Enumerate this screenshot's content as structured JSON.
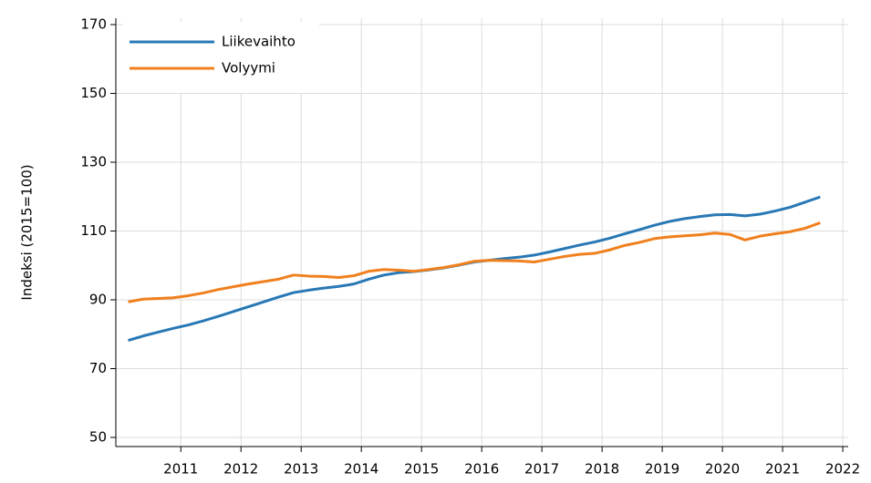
{
  "chart_data": {
    "type": "line",
    "y_label": "Indeksi (2015=100)",
    "x": [
      2010.125,
      2010.375,
      2010.625,
      2010.875,
      2011.125,
      2011.375,
      2011.625,
      2011.875,
      2012.125,
      2012.375,
      2012.625,
      2012.875,
      2013.125,
      2013.375,
      2013.625,
      2013.875,
      2014.125,
      2014.375,
      2014.625,
      2014.875,
      2015.125,
      2015.375,
      2015.625,
      2015.875,
      2016.125,
      2016.375,
      2016.625,
      2016.875,
      2017.125,
      2017.375,
      2017.625,
      2017.875,
      2018.125,
      2018.375,
      2018.625,
      2018.875,
      2019.125,
      2019.375,
      2019.625,
      2019.875,
      2020.125,
      2020.375,
      2020.625,
      2020.875,
      2021.125,
      2021.375,
      2021.625
    ],
    "series": [
      {
        "name": "Liikevaihto",
        "color": "#2878b5",
        "values": [
          78.2,
          79.5,
          80.6,
          81.7,
          82.7,
          83.9,
          85.2,
          86.6,
          88.0,
          89.4,
          90.8,
          92.1,
          92.8,
          93.4,
          93.9,
          94.6,
          96.0,
          97.2,
          97.9,
          98.2,
          98.7,
          99.3,
          100.1,
          101.0,
          101.5,
          102.0,
          102.4,
          103.0,
          103.9,
          104.9,
          105.9,
          106.8,
          107.9,
          109.2,
          110.4,
          111.7,
          112.8,
          113.6,
          114.2,
          114.7,
          114.8,
          114.4,
          114.9,
          115.8,
          116.9,
          118.4,
          119.9
        ]
      },
      {
        "name": "Volyymi",
        "color": "#f0801e",
        "values": [
          89.4,
          90.2,
          90.4,
          90.6,
          91.2,
          92.0,
          93.0,
          93.8,
          94.6,
          95.3,
          96.0,
          97.2,
          96.9,
          96.8,
          96.5,
          97.0,
          98.3,
          98.8,
          98.6,
          98.3,
          98.8,
          99.4,
          100.2,
          101.2,
          101.5,
          101.4,
          101.3,
          101.0,
          101.8,
          102.6,
          103.2,
          103.5,
          104.5,
          105.8,
          106.7,
          107.8,
          108.3,
          108.6,
          108.9,
          109.4,
          109.0,
          107.4,
          108.5,
          109.2,
          109.8,
          110.8,
          112.4
        ]
      }
    ],
    "xlim": [
      2009.92,
      2022.09
    ],
    "xticks": [
      2011,
      2012,
      2013,
      2014,
      2015,
      2016,
      2017,
      2018,
      2019,
      2020,
      2021,
      2022
    ],
    "ylim": [
      47.35,
      171.85
    ],
    "yticks": [
      50,
      70,
      90,
      110,
      130,
      150,
      170
    ],
    "grid": true,
    "legend": "upper-left"
  }
}
